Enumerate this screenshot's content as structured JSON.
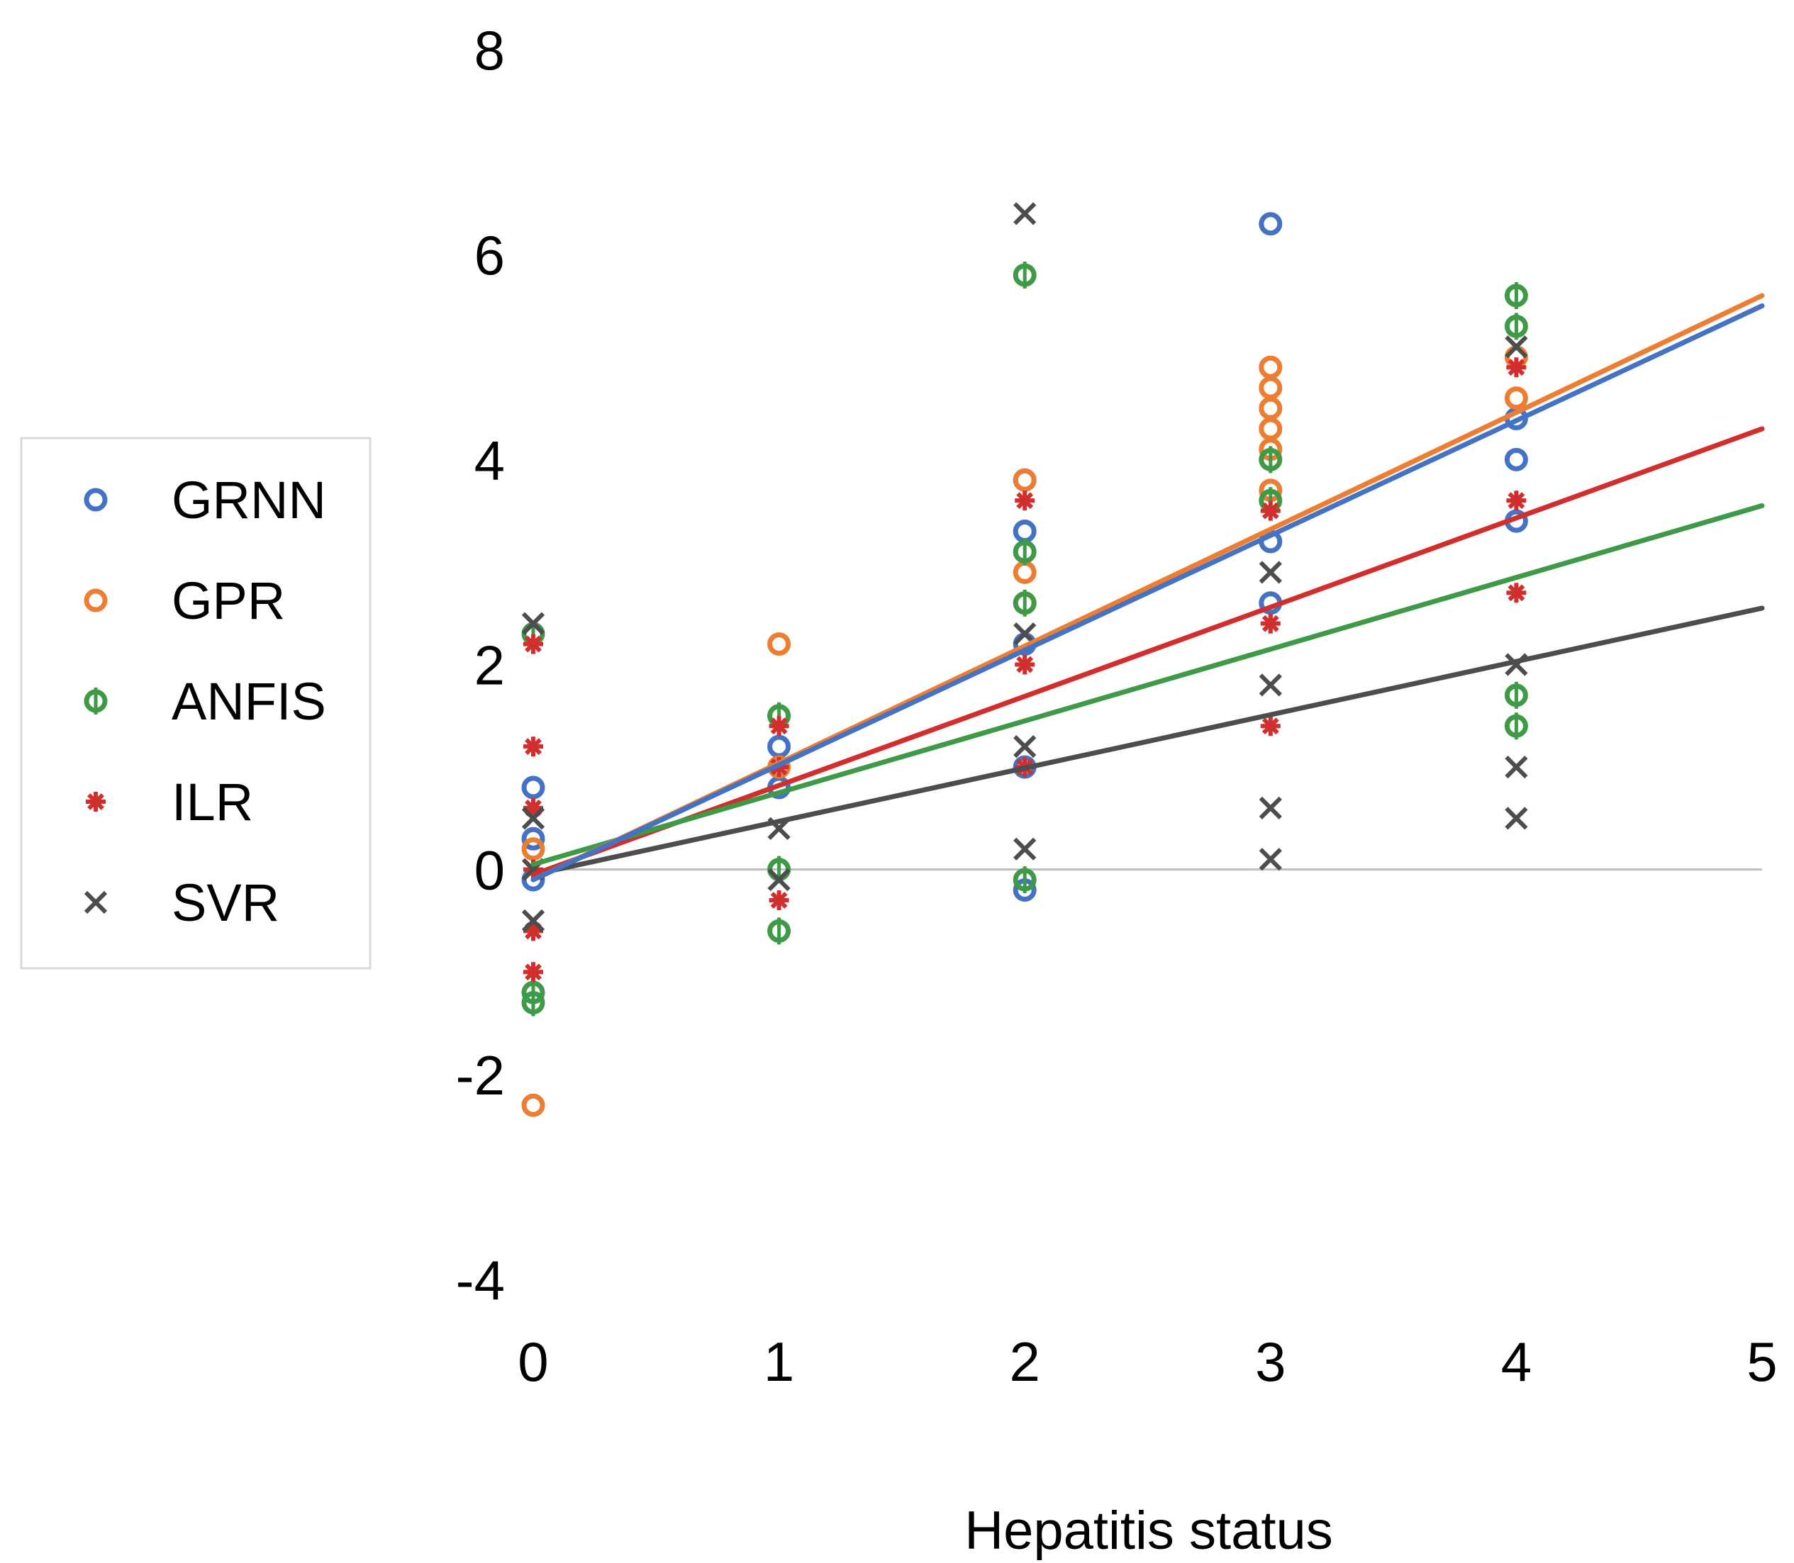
{
  "chart_data": {
    "type": "scatter",
    "title": "",
    "xlabel": "Hepatitis status",
    "ylabel": "",
    "xlim": [
      0,
      5
    ],
    "ylim": [
      -4,
      8
    ],
    "xticks": [
      "0",
      "1",
      "2",
      "3",
      "4",
      "5"
    ],
    "yticks": [
      "8",
      "6",
      "4",
      "2",
      "0",
      "-2",
      "-4"
    ],
    "legend_position": "left",
    "series": [
      {
        "name": "GRNN",
        "marker": "circle-open",
        "color": "#4472C4",
        "points": [
          [
            0,
            -0.1
          ],
          [
            0,
            0.3
          ],
          [
            0,
            0.8
          ],
          [
            1,
            0.8
          ],
          [
            1,
            1.2
          ],
          [
            2,
            -0.2
          ],
          [
            2,
            1.0
          ],
          [
            2,
            2.2
          ],
          [
            2,
            3.3
          ],
          [
            2,
            3.8
          ],
          [
            3,
            6.3
          ],
          [
            3,
            2.6
          ],
          [
            3,
            3.2
          ],
          [
            4,
            4.4
          ],
          [
            4,
            4.0
          ],
          [
            4,
            3.4
          ]
        ],
        "trend": {
          "slope": 1.12,
          "intercept": -0.1
        }
      },
      {
        "name": "GPR",
        "marker": "circle-open",
        "color": "#ED7D31",
        "points": [
          [
            0,
            -2.3
          ],
          [
            0,
            0.2
          ],
          [
            1,
            2.2
          ],
          [
            1,
            1.0
          ],
          [
            2,
            3.8
          ],
          [
            2,
            2.9
          ],
          [
            2,
            2.6
          ],
          [
            3,
            4.9
          ],
          [
            3,
            4.7
          ],
          [
            3,
            4.5
          ],
          [
            3,
            4.3
          ],
          [
            3,
            4.1
          ],
          [
            3,
            3.7
          ],
          [
            4,
            5.0
          ],
          [
            4,
            4.6
          ]
        ],
        "trend": {
          "slope": 1.14,
          "intercept": -0.1
        }
      },
      {
        "name": "ANFIS",
        "marker": "circle-bar",
        "color": "#3E9A47",
        "points": [
          [
            0,
            2.3
          ],
          [
            0,
            -1.2
          ],
          [
            0,
            -1.3
          ],
          [
            1,
            1.5
          ],
          [
            1,
            0.0
          ],
          [
            1,
            -0.6
          ],
          [
            2,
            5.8
          ],
          [
            2,
            3.1
          ],
          [
            2,
            2.6
          ],
          [
            2,
            -0.1
          ],
          [
            3,
            3.6
          ],
          [
            3,
            4.0
          ],
          [
            4,
            5.6
          ],
          [
            4,
            5.3
          ],
          [
            4,
            1.7
          ],
          [
            4,
            1.4
          ]
        ],
        "trend": {
          "slope": 0.7,
          "intercept": 0.05
        }
      },
      {
        "name": "ILR",
        "marker": "asterisk",
        "color": "#D12E2E",
        "points": [
          [
            0,
            2.2
          ],
          [
            0,
            1.2
          ],
          [
            0,
            0.6
          ],
          [
            0,
            0.0
          ],
          [
            0,
            -0.6
          ],
          [
            0,
            -1.0
          ],
          [
            1,
            1.4
          ],
          [
            1,
            1.0
          ],
          [
            1,
            -0.3
          ],
          [
            2,
            3.6
          ],
          [
            2,
            2.0
          ],
          [
            2,
            1.0
          ],
          [
            3,
            3.5
          ],
          [
            3,
            2.4
          ],
          [
            3,
            1.4
          ],
          [
            4,
            4.9
          ],
          [
            4,
            3.6
          ],
          [
            4,
            2.7
          ]
        ],
        "trend": {
          "slope": 0.87,
          "intercept": -0.05
        }
      },
      {
        "name": "SVR",
        "marker": "x",
        "color": "#4D4D4D",
        "points": [
          [
            0,
            2.4
          ],
          [
            0,
            0.5
          ],
          [
            0,
            0.0
          ],
          [
            0,
            -0.5
          ],
          [
            1,
            0.4
          ],
          [
            1,
            -0.1
          ],
          [
            2,
            6.4
          ],
          [
            2,
            2.3
          ],
          [
            2,
            1.2
          ],
          [
            2,
            0.2
          ],
          [
            3,
            2.9
          ],
          [
            3,
            1.8
          ],
          [
            3,
            0.6
          ],
          [
            3,
            0.1
          ],
          [
            4,
            5.1
          ],
          [
            4,
            2.0
          ],
          [
            4,
            1.0
          ],
          [
            4,
            0.5
          ]
        ],
        "trend": {
          "slope": 0.52,
          "intercept": -0.05
        }
      }
    ]
  }
}
